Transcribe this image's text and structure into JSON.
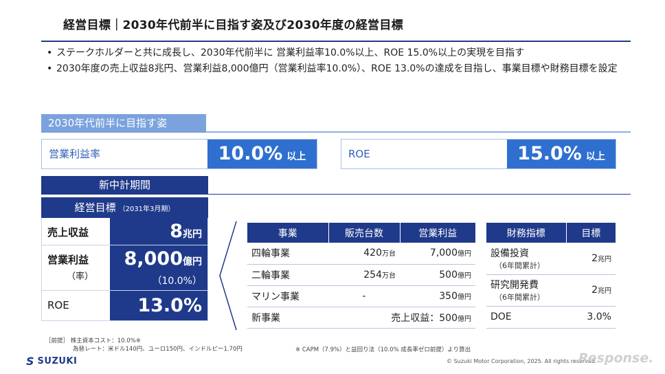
{
  "title": "経営目標｜2030年代前半に目指す姿及び2030年度の経営目標",
  "bullets": [
    "ステークホルダーと共に成長し、2030年代前半に 営業利益率10.0%以上、ROE 15.0%以上の実現を目指す",
    "2030年度の売上収益8兆円、営業利益8,000億円（営業利益率10.0%）、ROE 13.0%の達成を目指し、事業目標や財務目標を設定"
  ],
  "vision": {
    "heading": "2030年代前半に目指す姿",
    "kpis": [
      {
        "label": "営業利益率",
        "value": "10.0%",
        "suffix": "以上"
      },
      {
        "label": "ROE",
        "value": "15.0%",
        "suffix": "以上"
      }
    ]
  },
  "midterm": {
    "heading": "新中計期間"
  },
  "goals": {
    "heading": "経営目標",
    "period": "（2031年3月期）",
    "rows": [
      {
        "label": "売上収益",
        "value": "8",
        "unit": "兆円"
      },
      {
        "label": "営業利益",
        "sublabel": "（率）",
        "value": "8,000",
        "unit": "億円",
        "subvalue": "（10.0%）"
      },
      {
        "label": "ROE",
        "value": "13.0%"
      }
    ]
  },
  "business_table": {
    "headers": [
      "事業",
      "販売台数",
      "営業利益"
    ],
    "rows": [
      {
        "name": "四輪事業",
        "units": "420",
        "units_unit": "万台",
        "profit": "7,000",
        "profit_unit": "億円"
      },
      {
        "name": "二輪事業",
        "units": "254",
        "units_unit": "万台",
        "profit": "500",
        "profit_unit": "億円"
      },
      {
        "name": "マリン事業",
        "units": "-",
        "units_unit": "",
        "profit": "350",
        "profit_unit": "億円"
      }
    ],
    "new_business": {
      "name": "新事業",
      "text": "売上収益：500",
      "unit": "億円"
    }
  },
  "finance_table": {
    "headers": [
      "財務指標",
      "目標"
    ],
    "rows": [
      {
        "name": "設備投資",
        "sub": "（6年間累計）",
        "value": "2",
        "unit": "兆円"
      },
      {
        "name": "研究開発費",
        "sub": "（6年間累計）",
        "value": "2",
        "unit": "兆円"
      },
      {
        "name": "DOE",
        "sub": "",
        "value": "3.0%",
        "unit": ""
      }
    ]
  },
  "notes": {
    "prefix": "［前提］",
    "line1": "株主資本コスト：10.0%※",
    "line2": "為替レート：米ドル140円、ユーロ150円、インドルピー1.70円",
    "footnote": "※ CAPM（7.9%）と益回り法（10.0% 成長率ゼロ前提）より算出"
  },
  "footer": {
    "logo_text": "SUZUKI",
    "copyright": "© Suzuki Motor Corporation, 2025. All rights reserved.",
    "watermark": "Response."
  },
  "colors": {
    "navy": "#1f3a8a",
    "accent_blue": "#2f6fd0",
    "light_blue": "#7ba2dd"
  }
}
